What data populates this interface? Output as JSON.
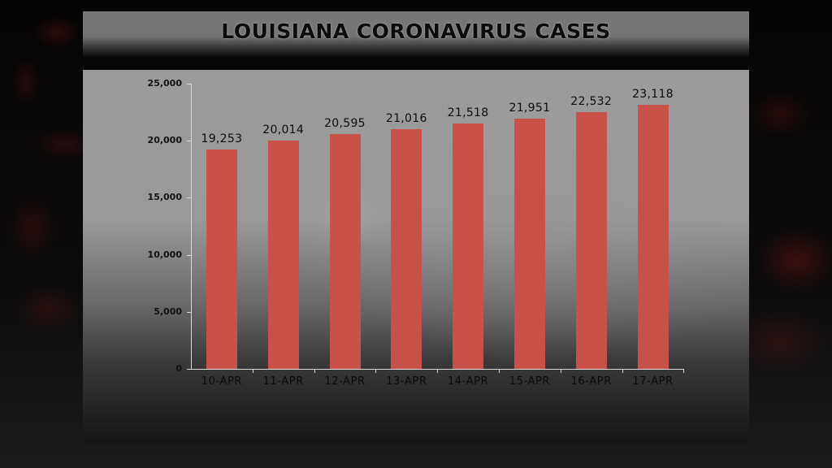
{
  "title": "LOUISIANA CORONAVIRUS CASES",
  "colors": {
    "bar": "#c8514a",
    "title_banner": "#777777",
    "background": "#050404"
  },
  "y_ticks": [
    "0",
    "5,000",
    "10,000",
    "15,000",
    "20,000",
    "25,000"
  ],
  "bars": [
    {
      "label": "10-APR",
      "value": 19253,
      "value_label": "19,253"
    },
    {
      "label": "11-APR",
      "value": 20014,
      "value_label": "20,014"
    },
    {
      "label": "12-APR",
      "value": 20595,
      "value_label": "20,595"
    },
    {
      "label": "13-APR",
      "value": 21016,
      "value_label": "21,016"
    },
    {
      "label": "14-APR",
      "value": 21518,
      "value_label": "21,518"
    },
    {
      "label": "15-APR",
      "value": 21951,
      "value_label": "21,951"
    },
    {
      "label": "16-APR",
      "value": 22532,
      "value_label": "22,532"
    },
    {
      "label": "17-APR",
      "value": 23118,
      "value_label": "23,118"
    }
  ],
  "chart_data": {
    "type": "bar",
    "title": "LOUISIANA CORONAVIRUS CASES",
    "categories": [
      "10-APR",
      "11-APR",
      "12-APR",
      "13-APR",
      "14-APR",
      "15-APR",
      "16-APR",
      "17-APR"
    ],
    "values": [
      19253,
      20014,
      20595,
      21016,
      21518,
      21951,
      22532,
      23118
    ],
    "xlabel": "",
    "ylabel": "",
    "ylim": [
      0,
      25000
    ],
    "yticks": [
      0,
      5000,
      10000,
      15000,
      20000,
      25000
    ],
    "grid": false,
    "legend": null,
    "data_labels": true
  }
}
